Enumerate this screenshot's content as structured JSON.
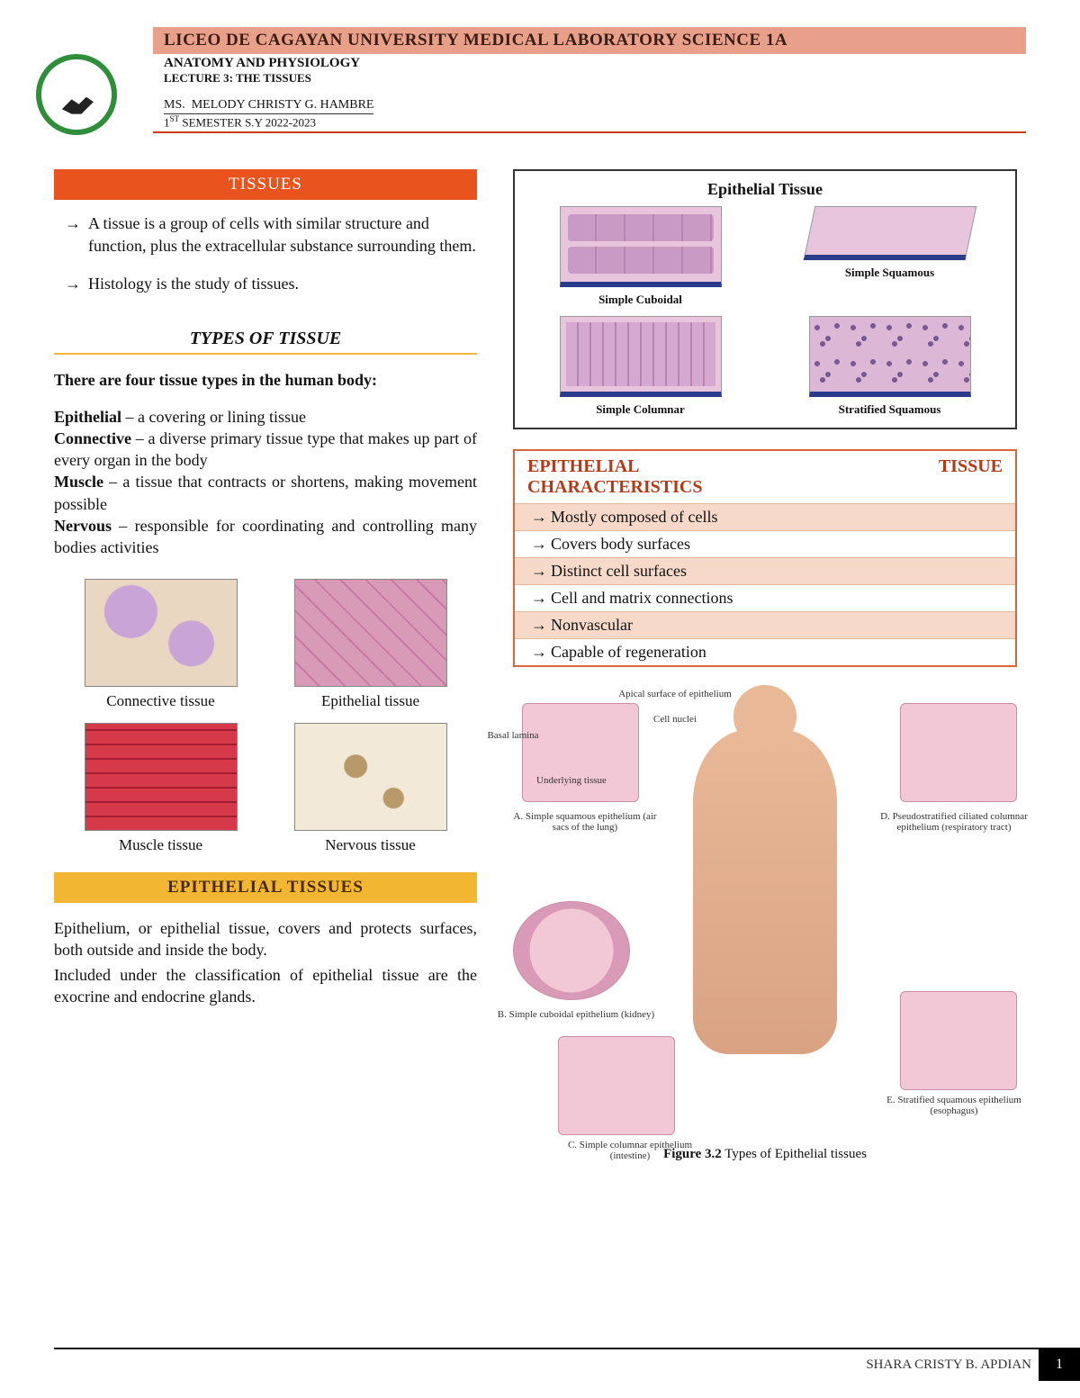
{
  "header": {
    "university": "LICEO DE CAGAYAN UNIVERSITY MEDICAL LABORATORY SCIENCE 1A",
    "course": "ANATOMY AND PHYSIOLOGY",
    "lecture": "LECTURE 3: THE TISSUES",
    "instructor": "MS.  MELODY CHRISTY G. HAMBRE",
    "semester_prefix": "1",
    "semester_sup": "ST",
    "semester_rest": " SEMESTER S.Y 2022-2023"
  },
  "sections": {
    "tissues_heading": "TISSUES",
    "tissue_def": "A tissue is a group of cells with similar structure and function, plus the extracellular substance surrounding them.",
    "histology": "Histology is the study of tissues.",
    "types_heading": "TYPES OF TISSUE",
    "four_types_intro": "There are four tissue types in the human body:",
    "types": {
      "epithelial_name": "Epithelial",
      "epithelial_desc": " – a covering or lining tissue",
      "connective_name": "Connective",
      "connective_desc": " – a diverse primary tissue type that makes up part of every organ in the body",
      "muscle_name": "Muscle",
      "muscle_desc": " – a tissue that contracts or shortens, making movement possible",
      "nervous_name": "Nervous",
      "nervous_desc": " – responsible for coordinating and controlling many bodies activities"
    },
    "epithelial_heading": "EPITHELIAL TISSUES",
    "epithelial_para1": "Epithelium, or epithelial tissue, covers and protects surfaces, both outside and inside the body.",
    "epithelial_para2": "Included under the classification of epithelial tissue are the exocrine and endocrine glands."
  },
  "et_box": {
    "title": "Epithelial Tissue",
    "cells": [
      {
        "label": "Simple Cuboidal",
        "cls": "cuboidal"
      },
      {
        "label": "Simple Squamous",
        "cls": "squamous"
      },
      {
        "label": "Simple Columnar",
        "cls": "columnar"
      },
      {
        "label": "Stratified Squamous",
        "cls": "strat"
      }
    ]
  },
  "char": {
    "title_left": "EPITHELIAL",
    "title_right": "TISSUE",
    "title_sub": "CHARACTERISTICS",
    "rows": [
      "Mostly composed of cells",
      "Covers body surfaces",
      "Distinct cell surfaces",
      "Cell and matrix connections",
      "Nonvascular",
      "Capable of regeneration"
    ]
  },
  "tissue_thumbs": [
    {
      "label": "Connective tissue",
      "cls": "thumb-conn"
    },
    {
      "label": "Epithelial tissue",
      "cls": "thumb-epi"
    },
    {
      "label": "Muscle tissue",
      "cls": "thumb-mus"
    },
    {
      "label": "Nervous tissue",
      "cls": "thumb-nerv"
    }
  ],
  "body_fig": {
    "labels": {
      "a": "A. Simple squamous epithelium (air sacs of the lung)",
      "a_top1": "Apical surface of epithelium",
      "a_top2": "Cell nuclei",
      "a_side1": "Basal lamina",
      "a_side2": "Underlying tissue",
      "b": "B. Simple cuboidal epithelium (kidney)",
      "c": "C. Simple columnar epithelium (intestine)",
      "d": "D. Pseudostratified ciliated columnar epithelium (respiratory tract)",
      "e": "E. Stratified squamous epithelium (esophagus)"
    },
    "caption_bold": "Figure 3.2",
    "caption_rest": "  Types of Epithelial tissues"
  },
  "footer": {
    "author": "SHARA CRISTY B. APDIAN",
    "page": "1"
  },
  "colors": {
    "header_band": "#e9a08b",
    "rule": "#d23a1a",
    "orange_bar": "#e8531e",
    "yellow_bar": "#f3b632",
    "char_border": "#d9663a",
    "char_title": "#b43a17",
    "char_shade": "#f6d9c9"
  }
}
